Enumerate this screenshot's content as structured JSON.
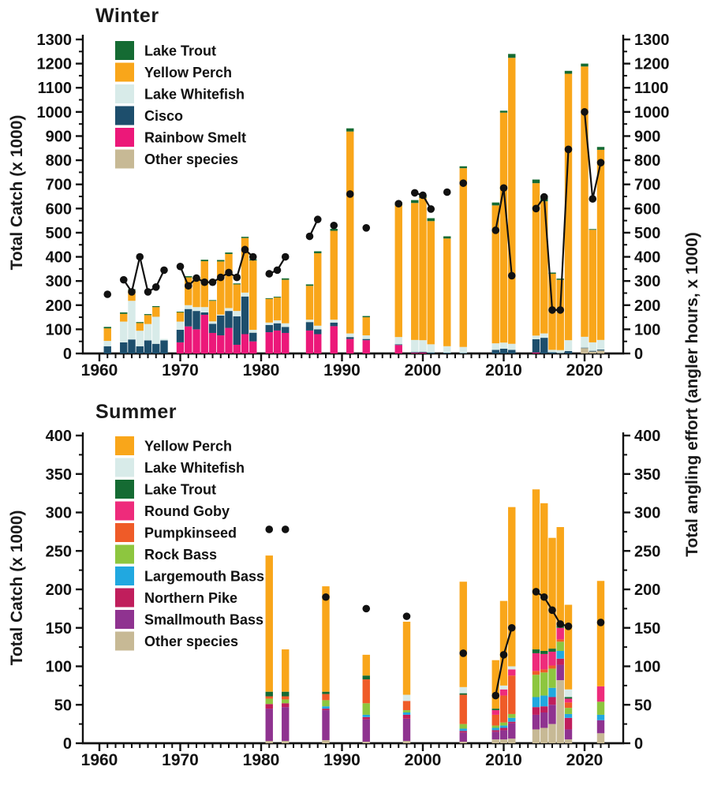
{
  "right_axis_label": "Total angling effort (angler hours, x 1000)",
  "colors": {
    "yellow_perch": "#F9A61A",
    "lake_whitefish": "#D8EBE9",
    "lake_trout": "#156B33",
    "cisco": "#1D4E6C",
    "rainbow_smelt": "#EC1879",
    "round_goby": "#EE2B7B",
    "pumpkinseed": "#EF5B28",
    "rock_bass": "#8DC63F",
    "largemouth_bass": "#21A8E0",
    "northern_pike": "#C01E5C",
    "smallmouth_bass": "#8F3390",
    "other_species": "#C7B995",
    "effort_line": "#111111"
  },
  "chart_data": [
    {
      "id": "winter",
      "type": "bar",
      "subtype": "stacked-bars-with-effort-line",
      "title": "Winter",
      "ylabel": "Total Catch (x 1000)",
      "y_axis": {
        "min": 0,
        "max": 1300,
        "major_step": 100,
        "minor_step": 50
      },
      "x_axis": {
        "min": 1960,
        "max": 2023,
        "decade_labels": [
          "1960",
          "1970",
          "1980",
          "1990",
          "2000",
          "2010",
          "2020"
        ]
      },
      "legend": [
        {
          "label": "Lake Trout",
          "color": "#156B33"
        },
        {
          "label": "Yellow Perch",
          "color": "#F9A61A"
        },
        {
          "label": "Lake Whitefish",
          "color": "#D8EBE9"
        },
        {
          "label": "Cisco",
          "color": "#1D4E6C"
        },
        {
          "label": "Rainbow Smelt",
          "color": "#EC1879"
        },
        {
          "label": "Other species",
          "color": "#C7B995"
        }
      ],
      "stack_order": [
        {
          "name": "Other species",
          "color": "#C7B995"
        },
        {
          "name": "Rainbow Smelt",
          "color": "#EC1879"
        },
        {
          "name": "Cisco",
          "color": "#1D4E6C"
        },
        {
          "name": "Lake Whitefish",
          "color": "#D8EBE9"
        },
        {
          "name": "Yellow Perch",
          "color": "#F9A61A"
        },
        {
          "name": "Lake Trout",
          "color": "#156B33"
        }
      ],
      "bars": [
        {
          "year": 1961,
          "values": [
            0,
            0,
            30,
            22,
            52,
            6
          ]
        },
        {
          "year": 1963,
          "values": [
            0,
            0,
            46,
            86,
            32,
            6
          ]
        },
        {
          "year": 1964,
          "values": [
            0,
            0,
            58,
            160,
            44,
            4
          ]
        },
        {
          "year": 1965,
          "values": [
            0,
            0,
            30,
            64,
            32,
            4
          ]
        },
        {
          "year": 1966,
          "values": [
            0,
            0,
            54,
            68,
            37,
            4
          ]
        },
        {
          "year": 1967,
          "values": [
            0,
            0,
            40,
            112,
            40,
            4
          ]
        },
        {
          "year": 1968,
          "values": [
            0,
            0,
            54,
            6,
            0,
            0
          ]
        },
        {
          "year": 1970,
          "values": [
            0,
            46,
            52,
            34,
            38,
            3
          ]
        },
        {
          "year": 1971,
          "values": [
            0,
            112,
            72,
            16,
            115,
            5
          ]
        },
        {
          "year": 1972,
          "values": [
            0,
            100,
            76,
            16,
            118,
            5
          ]
        },
        {
          "year": 1973,
          "values": [
            0,
            160,
            10,
            22,
            190,
            6
          ]
        },
        {
          "year": 1974,
          "values": [
            0,
            85,
            38,
            10,
            85,
            3
          ]
        },
        {
          "year": 1975,
          "values": [
            0,
            75,
            82,
            4,
            220,
            6
          ]
        },
        {
          "year": 1976,
          "values": [
            0,
            106,
            70,
            12,
            224,
            6
          ]
        },
        {
          "year": 1977,
          "values": [
            0,
            36,
            118,
            22,
            110,
            4
          ]
        },
        {
          "year": 1978,
          "values": [
            0,
            80,
            156,
            16,
            226,
            5
          ]
        },
        {
          "year": 1979,
          "values": [
            0,
            50,
            36,
            12,
            287,
            5
          ]
        },
        {
          "year": 1981,
          "values": [
            0,
            88,
            30,
            10,
            98,
            3
          ]
        },
        {
          "year": 1982,
          "values": [
            0,
            95,
            30,
            12,
            95,
            3
          ]
        },
        {
          "year": 1983,
          "values": [
            0,
            85,
            25,
            15,
            180,
            6
          ]
        },
        {
          "year": 1986,
          "values": [
            0,
            95,
            35,
            10,
            140,
            6
          ]
        },
        {
          "year": 1987,
          "values": [
            0,
            80,
            20,
            15,
            300,
            8
          ]
        },
        {
          "year": 1989,
          "values": [
            0,
            113,
            15,
            12,
            368,
            8
          ]
        },
        {
          "year": 1991,
          "values": [
            0,
            60,
            8,
            15,
            836,
            13
          ]
        },
        {
          "year": 1993,
          "values": [
            0,
            55,
            5,
            15,
            75,
            5
          ]
        },
        {
          "year": 1997,
          "values": [
            0,
            35,
            3,
            30,
            545,
            12
          ]
        },
        {
          "year": 1999,
          "values": [
            0,
            3,
            3,
            50,
            567,
            12
          ]
        },
        {
          "year": 2000,
          "values": [
            0,
            4,
            3,
            48,
            589,
            12
          ]
        },
        {
          "year": 2001,
          "values": [
            0,
            0,
            4,
            34,
            510,
            12
          ]
        },
        {
          "year": 2003,
          "values": [
            0,
            0,
            3,
            27,
            446,
            9
          ]
        },
        {
          "year": 2005,
          "values": [
            0,
            0,
            2,
            25,
            740,
            8
          ]
        },
        {
          "year": 2009,
          "values": [
            0,
            0,
            15,
            27,
            571,
            12
          ]
        },
        {
          "year": 2010,
          "values": [
            0,
            0,
            20,
            25,
            952,
            8
          ]
        },
        {
          "year": 2011,
          "values": [
            0,
            0,
            15,
            25,
            1184,
            16
          ]
        },
        {
          "year": 2014,
          "values": [
            0,
            4,
            55,
            15,
            631,
            15
          ]
        },
        {
          "year": 2015,
          "values": [
            0,
            0,
            65,
            18,
            547,
            15
          ]
        },
        {
          "year": 2016,
          "values": [
            0,
            0,
            5,
            10,
            315,
            5
          ]
        },
        {
          "year": 2017,
          "values": [
            0,
            0,
            2,
            12,
            291,
            5
          ]
        },
        {
          "year": 2018,
          "values": [
            0,
            0,
            10,
            45,
            1103,
            12
          ]
        },
        {
          "year": 2020,
          "values": [
            22,
            0,
            2,
            45,
            1119,
            12
          ]
        },
        {
          "year": 2021,
          "values": [
            8,
            0,
            3,
            35,
            466,
            3
          ]
        },
        {
          "year": 2022,
          "values": [
            12,
            0,
            4,
            40,
            787,
            12
          ]
        }
      ],
      "effort": [
        {
          "year": 1961,
          "value": 245
        },
        {
          "year": 1963,
          "value": 305
        },
        {
          "year": 1964,
          "value": 255
        },
        {
          "year": 1965,
          "value": 400
        },
        {
          "year": 1966,
          "value": 255
        },
        {
          "year": 1967,
          "value": 275
        },
        {
          "year": 1968,
          "value": 345
        },
        {
          "year": 1970,
          "value": 360
        },
        {
          "year": 1971,
          "value": 280
        },
        {
          "year": 1972,
          "value": 312
        },
        {
          "year": 1973,
          "value": 295
        },
        {
          "year": 1974,
          "value": 295
        },
        {
          "year": 1975,
          "value": 315
        },
        {
          "year": 1976,
          "value": 335
        },
        {
          "year": 1977,
          "value": 315
        },
        {
          "year": 1978,
          "value": 430
        },
        {
          "year": 1979,
          "value": 400
        },
        {
          "year": 1981,
          "value": 330
        },
        {
          "year": 1982,
          "value": 345
        },
        {
          "year": 1983,
          "value": 400
        },
        {
          "year": 1986,
          "value": 485
        },
        {
          "year": 1987,
          "value": 555
        },
        {
          "year": 1989,
          "value": 530
        },
        {
          "year": 1991,
          "value": 660
        },
        {
          "year": 1993,
          "value": 520
        },
        {
          "year": 1997,
          "value": 620
        },
        {
          "year": 1999,
          "value": 665
        },
        {
          "year": 2000,
          "value": 655
        },
        {
          "year": 2001,
          "value": 598
        },
        {
          "year": 2003,
          "value": 668
        },
        {
          "year": 2005,
          "value": 705
        },
        {
          "year": 2009,
          "value": 510
        },
        {
          "year": 2010,
          "value": 685
        },
        {
          "year": 2011,
          "value": 322
        },
        {
          "year": 2014,
          "value": 600
        },
        {
          "year": 2015,
          "value": 648
        },
        {
          "year": 2016,
          "value": 180
        },
        {
          "year": 2017,
          "value": 180
        },
        {
          "year": 2018,
          "value": 845
        },
        {
          "year": 2020,
          "value": 1000
        },
        {
          "year": 2021,
          "value": 640
        },
        {
          "year": 2022,
          "value": 790
        }
      ]
    },
    {
      "id": "summer",
      "type": "bar",
      "subtype": "stacked-bars-with-effort-line",
      "title": "Summer",
      "ylabel": "Total Catch (x 1000)",
      "y_axis": {
        "min": 0,
        "max": 400,
        "major_step": 50,
        "minor_step": 25
      },
      "x_axis": {
        "min": 1960,
        "max": 2023,
        "decade_labels": [
          "1960",
          "1970",
          "1980",
          "1990",
          "2000",
          "2010",
          "2020"
        ]
      },
      "legend": [
        {
          "label": "Yellow Perch",
          "color": "#F9A61A"
        },
        {
          "label": "Lake Whitefish",
          "color": "#D8EBE9"
        },
        {
          "label": "Lake Trout",
          "color": "#156B33"
        },
        {
          "label": "Round Goby",
          "color": "#EE2B7B"
        },
        {
          "label": "Pumpkinseed",
          "color": "#EF5B28"
        },
        {
          "label": "Rock Bass",
          "color": "#8DC63F"
        },
        {
          "label": "Largemouth Bass",
          "color": "#21A8E0"
        },
        {
          "label": "Northern Pike",
          "color": "#C01E5C"
        },
        {
          "label": "Smallmouth Bass",
          "color": "#8F3390"
        },
        {
          "label": "Other species",
          "color": "#C7B995"
        }
      ],
      "stack_order": [
        {
          "name": "Other species",
          "color": "#C7B995"
        },
        {
          "name": "Smallmouth Bass",
          "color": "#8F3390"
        },
        {
          "name": "Northern Pike",
          "color": "#C01E5C"
        },
        {
          "name": "Largemouth Bass",
          "color": "#21A8E0"
        },
        {
          "name": "Rock Bass",
          "color": "#8DC63F"
        },
        {
          "name": "Pumpkinseed",
          "color": "#EF5B28"
        },
        {
          "name": "Round Goby",
          "color": "#EE2B7B"
        },
        {
          "name": "Lake Trout",
          "color": "#156B33"
        },
        {
          "name": "Lake Whitefish",
          "color": "#D8EBE9"
        },
        {
          "name": "Yellow Perch",
          "color": "#F9A61A"
        }
      ],
      "bars": [
        {
          "year": 1981,
          "values": [
            3,
            42,
            6,
            0,
            7,
            3,
            0,
            6,
            0,
            177
          ]
        },
        {
          "year": 1983,
          "values": [
            3,
            44,
            5,
            0,
            5,
            4,
            0,
            6,
            0,
            55
          ]
        },
        {
          "year": 1988,
          "values": [
            4,
            39,
            2,
            3,
            8,
            8,
            0,
            3,
            0,
            137
          ]
        },
        {
          "year": 1993,
          "values": [
            2,
            29,
            3,
            3,
            15,
            31,
            0,
            5,
            0,
            27
          ]
        },
        {
          "year": 1998,
          "values": [
            3,
            29,
            5,
            3,
            3,
            12,
            0,
            0,
            8,
            95
          ]
        },
        {
          "year": 2005,
          "values": [
            2,
            12,
            2,
            3,
            6,
            38,
            0,
            2,
            8,
            137
          ]
        },
        {
          "year": 2009,
          "values": [
            5,
            10,
            2,
            3,
            3,
            14,
            6,
            2,
            0,
            63
          ]
        },
        {
          "year": 2010,
          "values": [
            5,
            12,
            3,
            3,
            4,
            35,
            8,
            0,
            5,
            110
          ]
        },
        {
          "year": 2011,
          "values": [
            6,
            20,
            2,
            5,
            5,
            50,
            8,
            0,
            4,
            207
          ]
        },
        {
          "year": 2014,
          "values": [
            18,
            19,
            10,
            13,
            29,
            5,
            23,
            5,
            0,
            208
          ]
        },
        {
          "year": 2015,
          "values": [
            20,
            20,
            8,
            14,
            30,
            4,
            20,
            4,
            0,
            192
          ]
        },
        {
          "year": 2016,
          "values": [
            25,
            25,
            10,
            12,
            25,
            4,
            18,
            4,
            0,
            144
          ]
        },
        {
          "year": 2017,
          "values": [
            82,
            20,
            8,
            10,
            12,
            3,
            15,
            3,
            0,
            128
          ]
        },
        {
          "year": 2018,
          "values": [
            5,
            13,
            15,
            5,
            8,
            7,
            5,
            2,
            10,
            110
          ]
        },
        {
          "year": 2022,
          "values": [
            13,
            17,
            0,
            7,
            17,
            0,
            20,
            0,
            0,
            137
          ]
        }
      ],
      "effort": [
        {
          "year": 1981,
          "value": 278
        },
        {
          "year": 1983,
          "value": 278
        },
        {
          "year": 1988,
          "value": 190
        },
        {
          "year": 1993,
          "value": 175
        },
        {
          "year": 1998,
          "value": 165
        },
        {
          "year": 2005,
          "value": 117
        },
        {
          "year": 2009,
          "value": 62
        },
        {
          "year": 2010,
          "value": 115
        },
        {
          "year": 2011,
          "value": 150
        },
        {
          "year": 2014,
          "value": 197
        },
        {
          "year": 2015,
          "value": 190
        },
        {
          "year": 2016,
          "value": 173
        },
        {
          "year": 2017,
          "value": 155
        },
        {
          "year": 2018,
          "value": 152
        },
        {
          "year": 2022,
          "value": 157
        }
      ]
    }
  ]
}
